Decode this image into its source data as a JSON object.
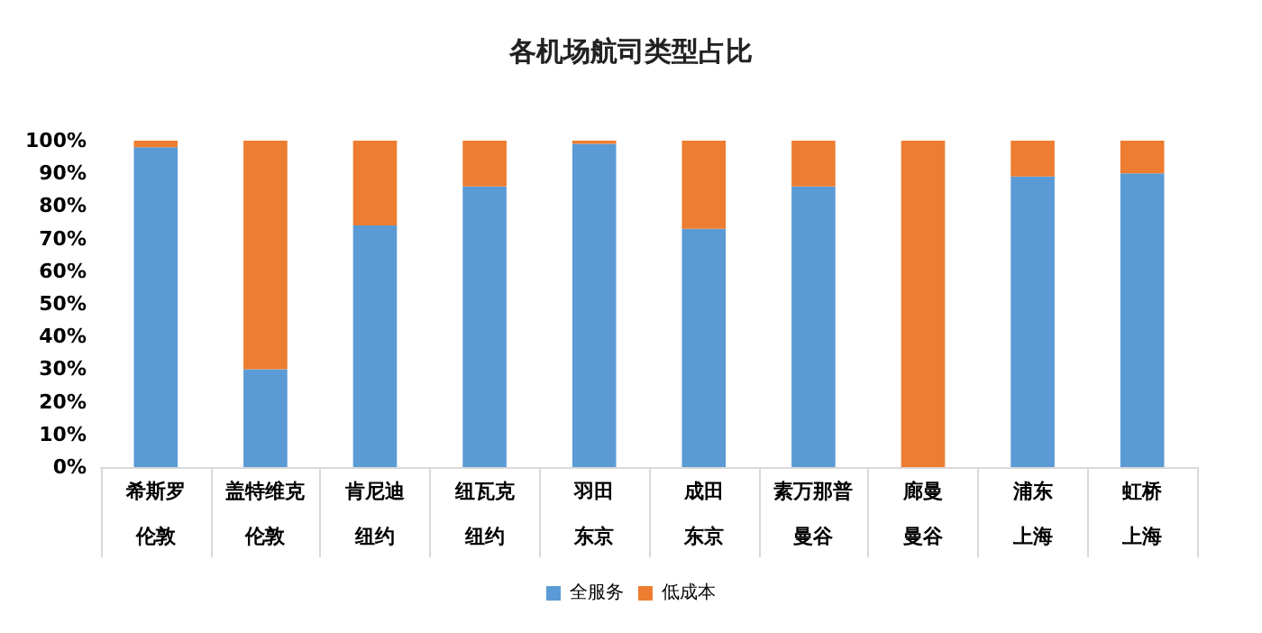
{
  "chart_data": {
    "type": "bar",
    "title": "各机场航司类型占比",
    "stacked": true,
    "categories": [
      "希斯罗",
      "盖特维克",
      "肯尼迪",
      "纽瓦克",
      "羽田",
      "成田",
      "素万那普",
      "廊曼",
      "浦东",
      "虹桥"
    ],
    "annotations": [
      "伦敦",
      "伦敦",
      "纽约",
      "纽约",
      "东京",
      "东京",
      "曼谷",
      "曼谷",
      "上海",
      "上海"
    ],
    "series": [
      {
        "name": "全服务",
        "color": "#5b9bd5",
        "values": [
          98,
          30,
          74,
          86,
          99,
          73,
          86,
          0,
          89,
          90
        ]
      },
      {
        "name": "低成本",
        "color": "#ed7d31",
        "values": [
          2,
          70,
          26,
          14,
          1,
          27,
          14,
          100,
          11,
          10
        ]
      }
    ],
    "ylim": [
      0,
      100
    ],
    "yticks": [
      {
        "value": 0,
        "label": "0%"
      },
      {
        "value": 10,
        "label": "10%"
      },
      {
        "value": 20,
        "label": "20%"
      },
      {
        "value": 30,
        "label": "30%"
      },
      {
        "value": 40,
        "label": "40%"
      },
      {
        "value": 50,
        "label": "50%"
      },
      {
        "value": 60,
        "label": "60%"
      },
      {
        "value": 70,
        "label": "70%"
      },
      {
        "value": 80,
        "label": "80%"
      },
      {
        "value": 90,
        "label": "90%"
      },
      {
        "value": 100,
        "label": "100%"
      }
    ],
    "grid": false,
    "legend": "bottom"
  }
}
